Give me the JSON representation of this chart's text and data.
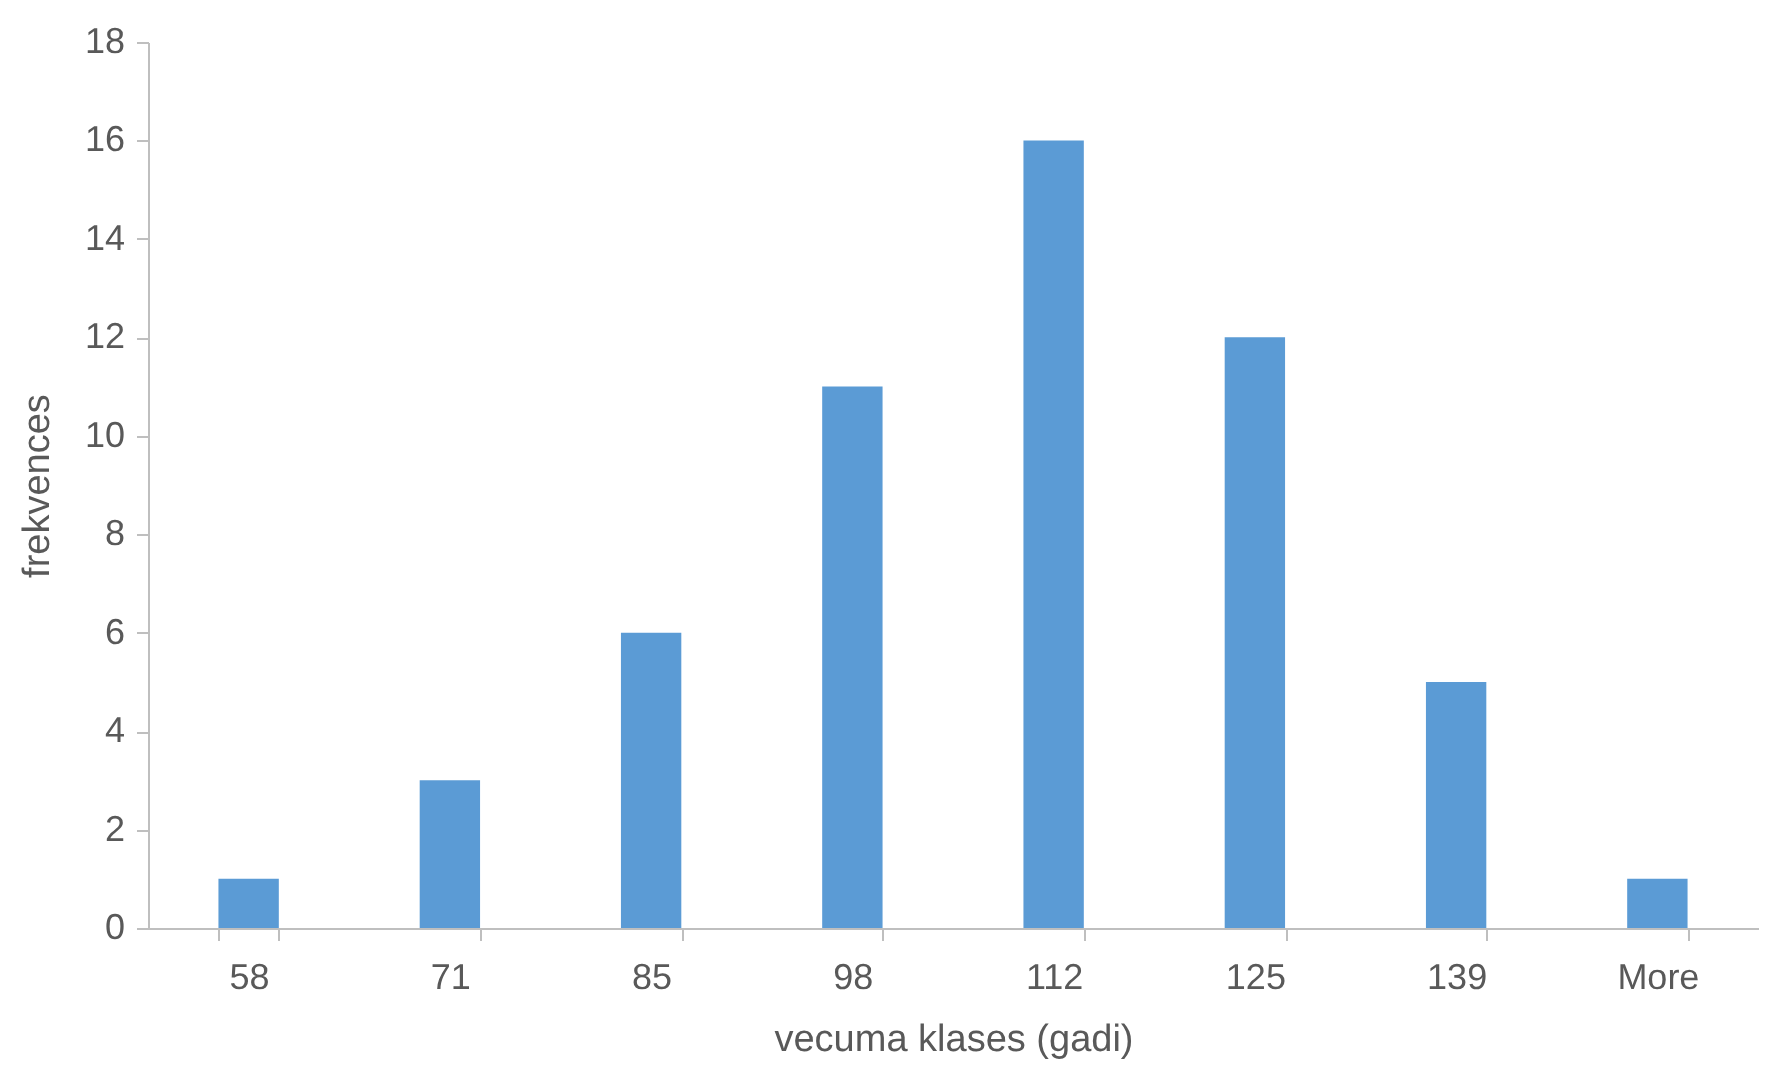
{
  "chart_data": {
    "type": "bar",
    "xlabel": "vecuma klases (gadi)",
    "ylabel": "frekvences",
    "categories": [
      "58",
      "71",
      "85",
      "98",
      "112",
      "125",
      "139",
      "More"
    ],
    "values": [
      1,
      3,
      6,
      11,
      16,
      12,
      5,
      1
    ],
    "color": "#5b9bd5",
    "ylim": [
      0,
      18
    ],
    "yticks": [
      0,
      2,
      4,
      6,
      8,
      10,
      12,
      14,
      16,
      18
    ],
    "grid": false
  }
}
